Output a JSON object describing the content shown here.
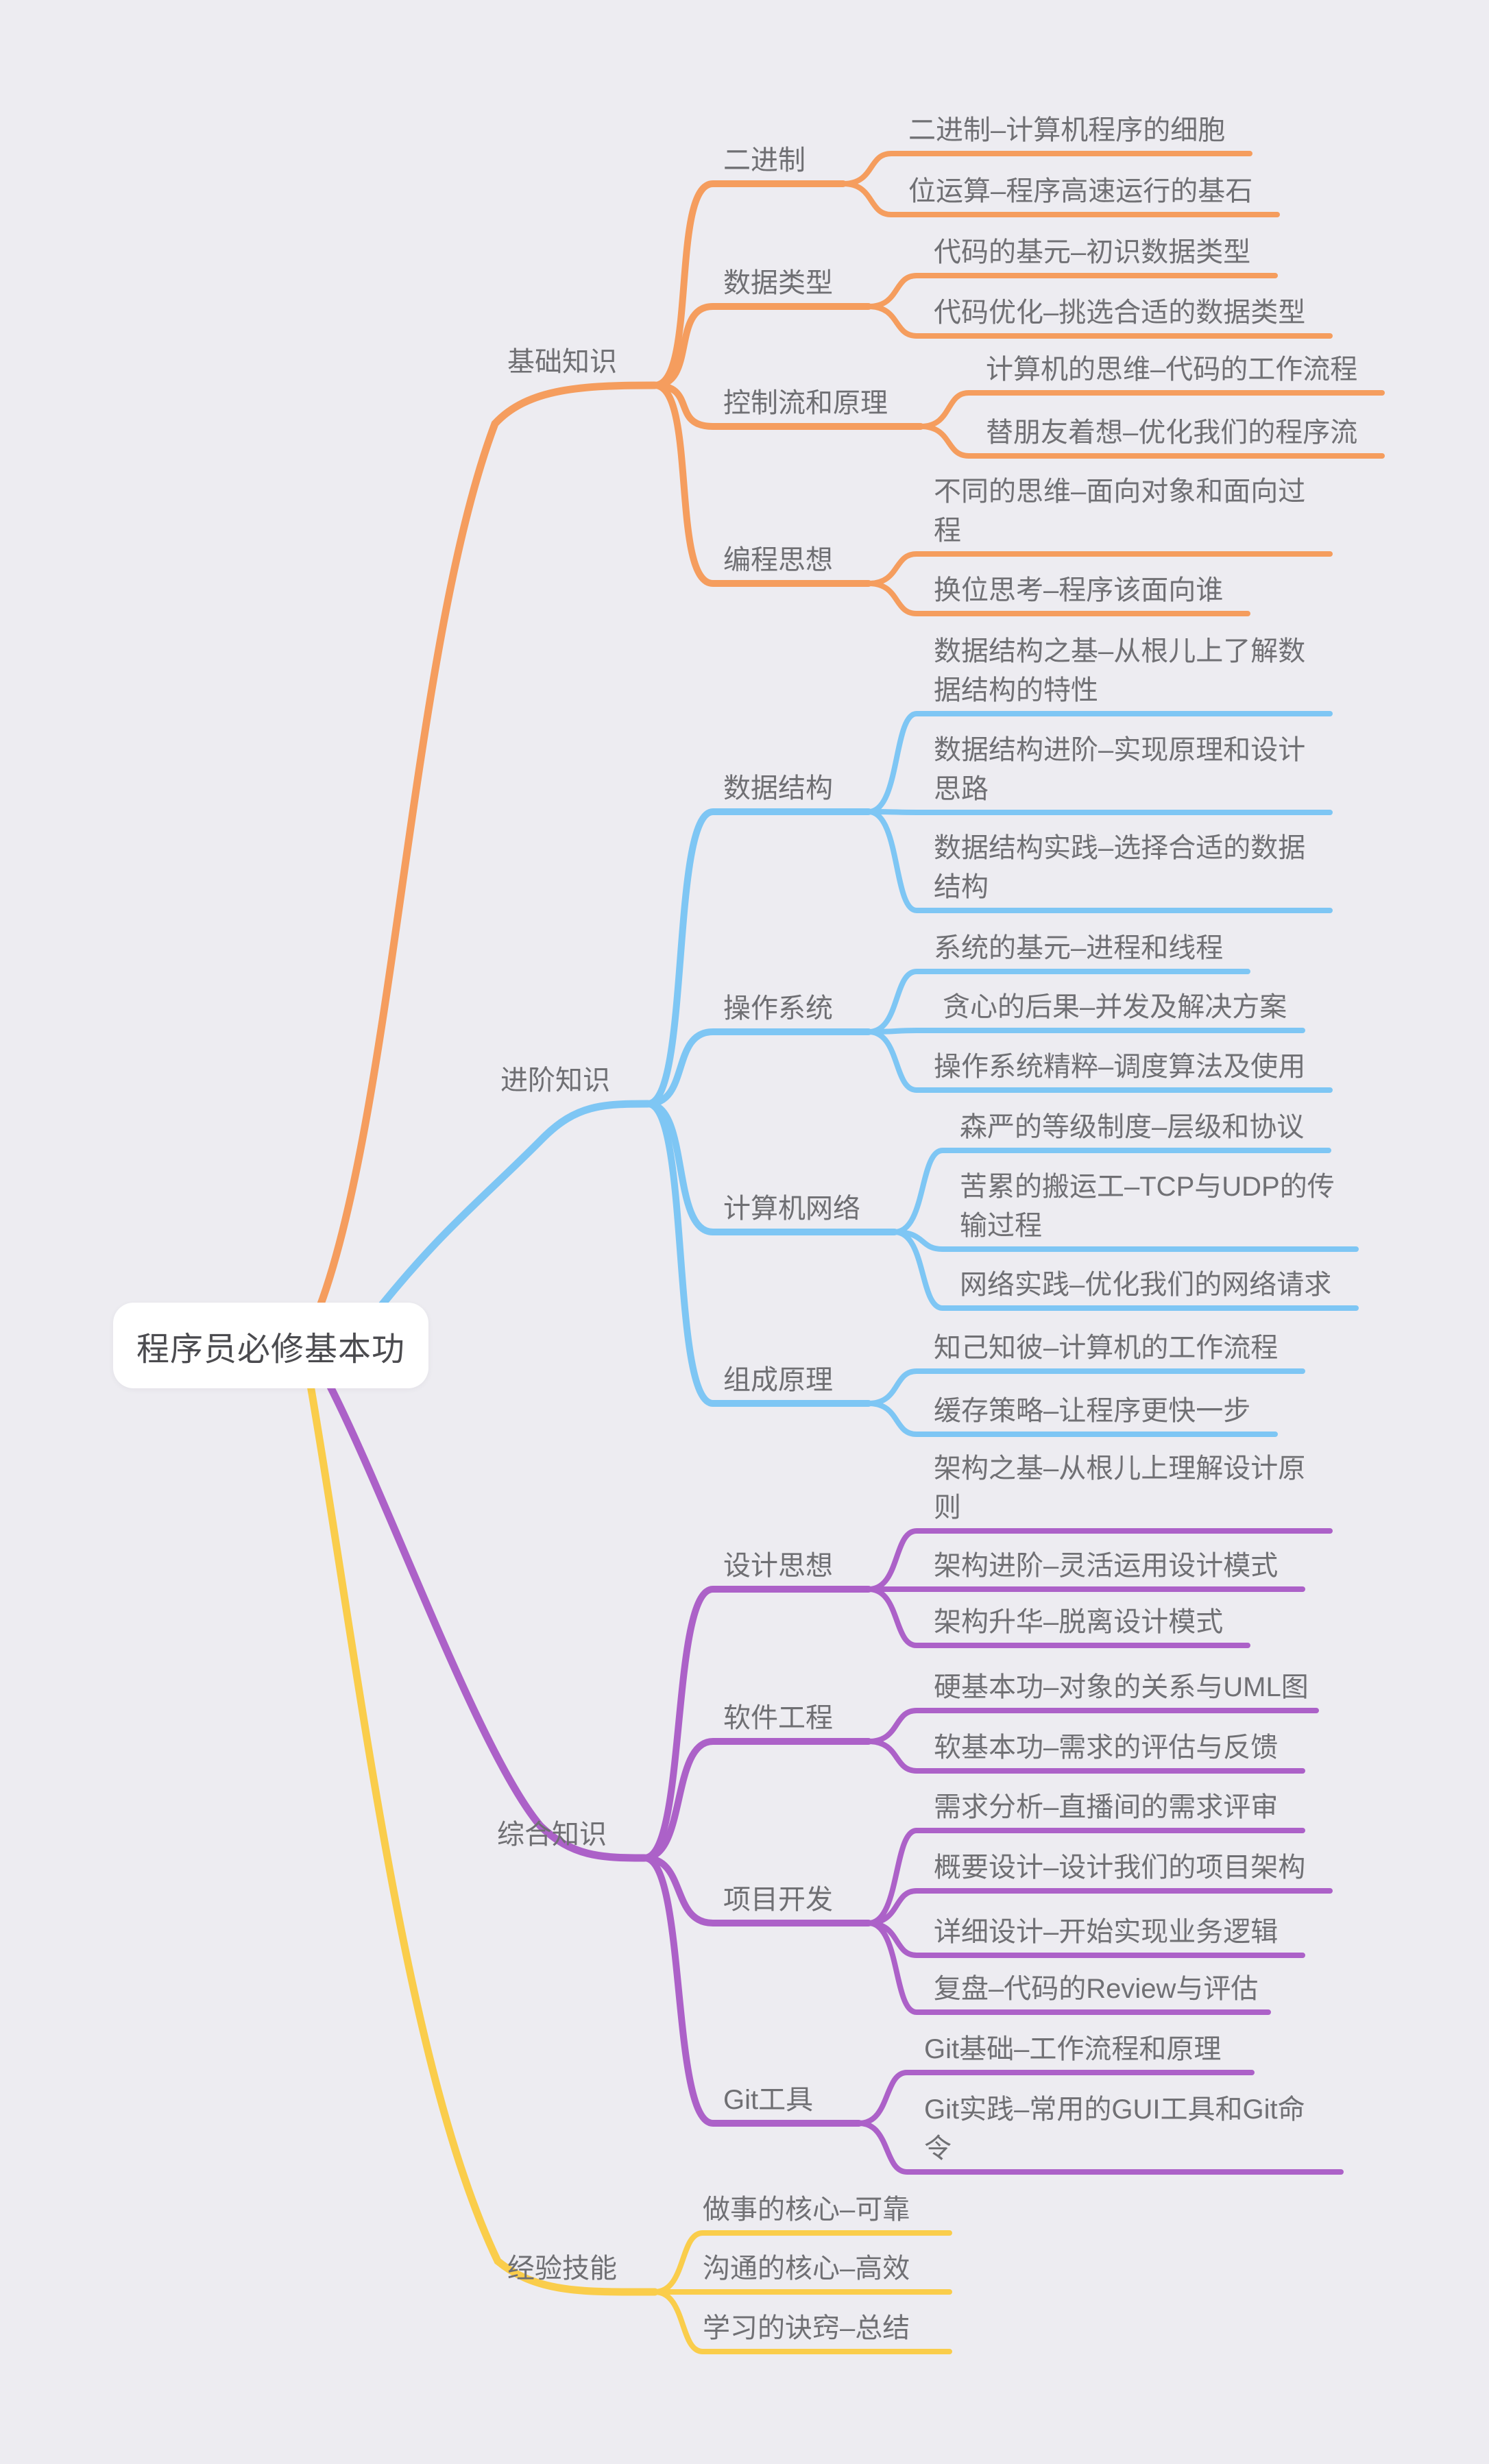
{
  "root": {
    "label": "程序员必修基本功"
  },
  "colors": {
    "orange": "#F59D5E",
    "blue": "#7EC6F4",
    "purple": "#AC61C8",
    "yellow": "#FACD4B",
    "background": "#EDECF1",
    "text": "#707074"
  },
  "branches": [
    {
      "label": "基础知识",
      "color": "#F59D5E",
      "topics": [
        {
          "label": "二进制",
          "leaves": [
            "二进制–计算机程序的细胞",
            "位运算–程序高速运行的基石"
          ]
        },
        {
          "label": "数据类型",
          "leaves": [
            "代码的基元–初识数据类型",
            "代码优化–挑选合适的数据类型"
          ]
        },
        {
          "label": "控制流和原理",
          "leaves": [
            "计算机的思维–代码的工作流程",
            "替朋友着想–优化我们的程序流"
          ]
        },
        {
          "label": "编程思想",
          "leaves": [
            "不同的思维–面向对象和面向过\n程",
            "换位思考–程序该面向谁"
          ]
        }
      ]
    },
    {
      "label": "进阶知识",
      "color": "#7EC6F4",
      "topics": [
        {
          "label": "数据结构",
          "leaves": [
            "数据结构之基–从根儿上了解数\n据结构的特性",
            "数据结构进阶–实现原理和设计\n思路",
            "数据结构实践–选择合适的数据\n结构"
          ]
        },
        {
          "label": "操作系统",
          "leaves": [
            "系统的基元–进程和线程",
            "贪心的后果–并发及解决方案",
            "操作系统精粹–调度算法及使用"
          ]
        },
        {
          "label": "计算机网络",
          "leaves": [
            "森严的等级制度–层级和协议",
            "苦累的搬运工–TCP与UDP的传\n输过程",
            "网络实践–优化我们的网络请求"
          ]
        },
        {
          "label": "组成原理",
          "leaves": [
            "知己知彼–计算机的工作流程",
            "缓存策略–让程序更快一步"
          ]
        }
      ]
    },
    {
      "label": "综合知识",
      "color": "#AC61C8",
      "topics": [
        {
          "label": "设计思想",
          "leaves": [
            "架构之基–从根儿上理解设计原\n则",
            "架构进阶–灵活运用设计模式",
            "架构升华–脱离设计模式"
          ]
        },
        {
          "label": "软件工程",
          "leaves": [
            "硬基本功–对象的关系与UML图",
            "软基本功–需求的评估与反馈"
          ]
        },
        {
          "label": "项目开发",
          "leaves": [
            "需求分析–直播间的需求评审",
            "概要设计–设计我们的项目架构",
            "详细设计–开始实现业务逻辑",
            "复盘–代码的Review与评估"
          ]
        },
        {
          "label": "Git工具",
          "leaves": [
            "Git基础–工作流程和原理",
            "Git实践–常用的GUI工具和Git命\n令"
          ]
        }
      ]
    },
    {
      "label": "经验技能",
      "color": "#FACD4B",
      "leaves": [
        "做事的核心–可靠",
        "沟通的核心–高效",
        "学习的诀窍–总结"
      ]
    }
  ]
}
